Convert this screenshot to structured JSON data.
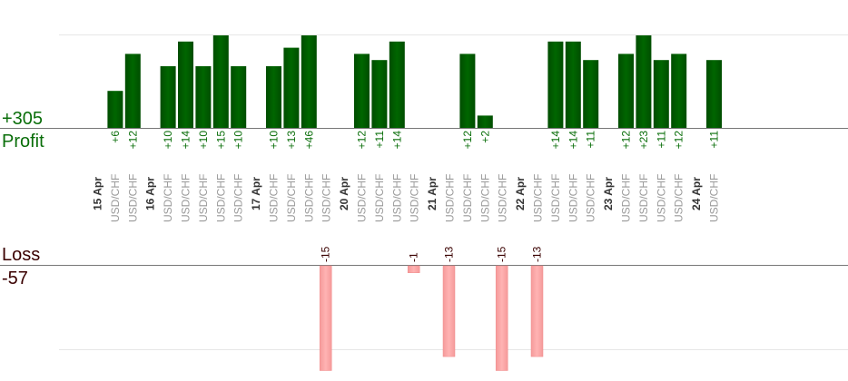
{
  "summary": {
    "profit_total": "+305",
    "profit_label": "Profit",
    "loss_label": "Loss",
    "loss_total": "-57"
  },
  "colors": {
    "profit_bar": "#006600",
    "loss_bar": "#ffb3b3",
    "profit_text": "#0a6e0a",
    "loss_text": "#3a0000",
    "date_text": "#333333",
    "symbol_text": "#999999"
  },
  "chart_data": {
    "type": "bar",
    "symbol": "USD/CHF",
    "days": [
      {
        "date": "15 Apr",
        "trades": [
          6,
          12
        ]
      },
      {
        "date": "16 Apr",
        "trades": [
          10,
          14,
          10,
          15,
          10
        ]
      },
      {
        "date": "17 Apr",
        "trades": [
          10,
          13,
          46,
          -15
        ]
      },
      {
        "date": "20 Apr",
        "trades": [
          12,
          11,
          14,
          -1
        ]
      },
      {
        "date": "21 Apr",
        "trades": [
          -13,
          12,
          2,
          -15
        ]
      },
      {
        "date": "22 Apr",
        "trades": [
          -13,
          14,
          14,
          11
        ]
      },
      {
        "date": "23 Apr",
        "trades": [
          12,
          23,
          11,
          12
        ]
      },
      {
        "date": "24 Apr",
        "trades": [
          11
        ]
      }
    ],
    "profit_ylim": [
      0,
      15
    ],
    "loss_ylim": [
      -15,
      0
    ],
    "grid": true
  }
}
